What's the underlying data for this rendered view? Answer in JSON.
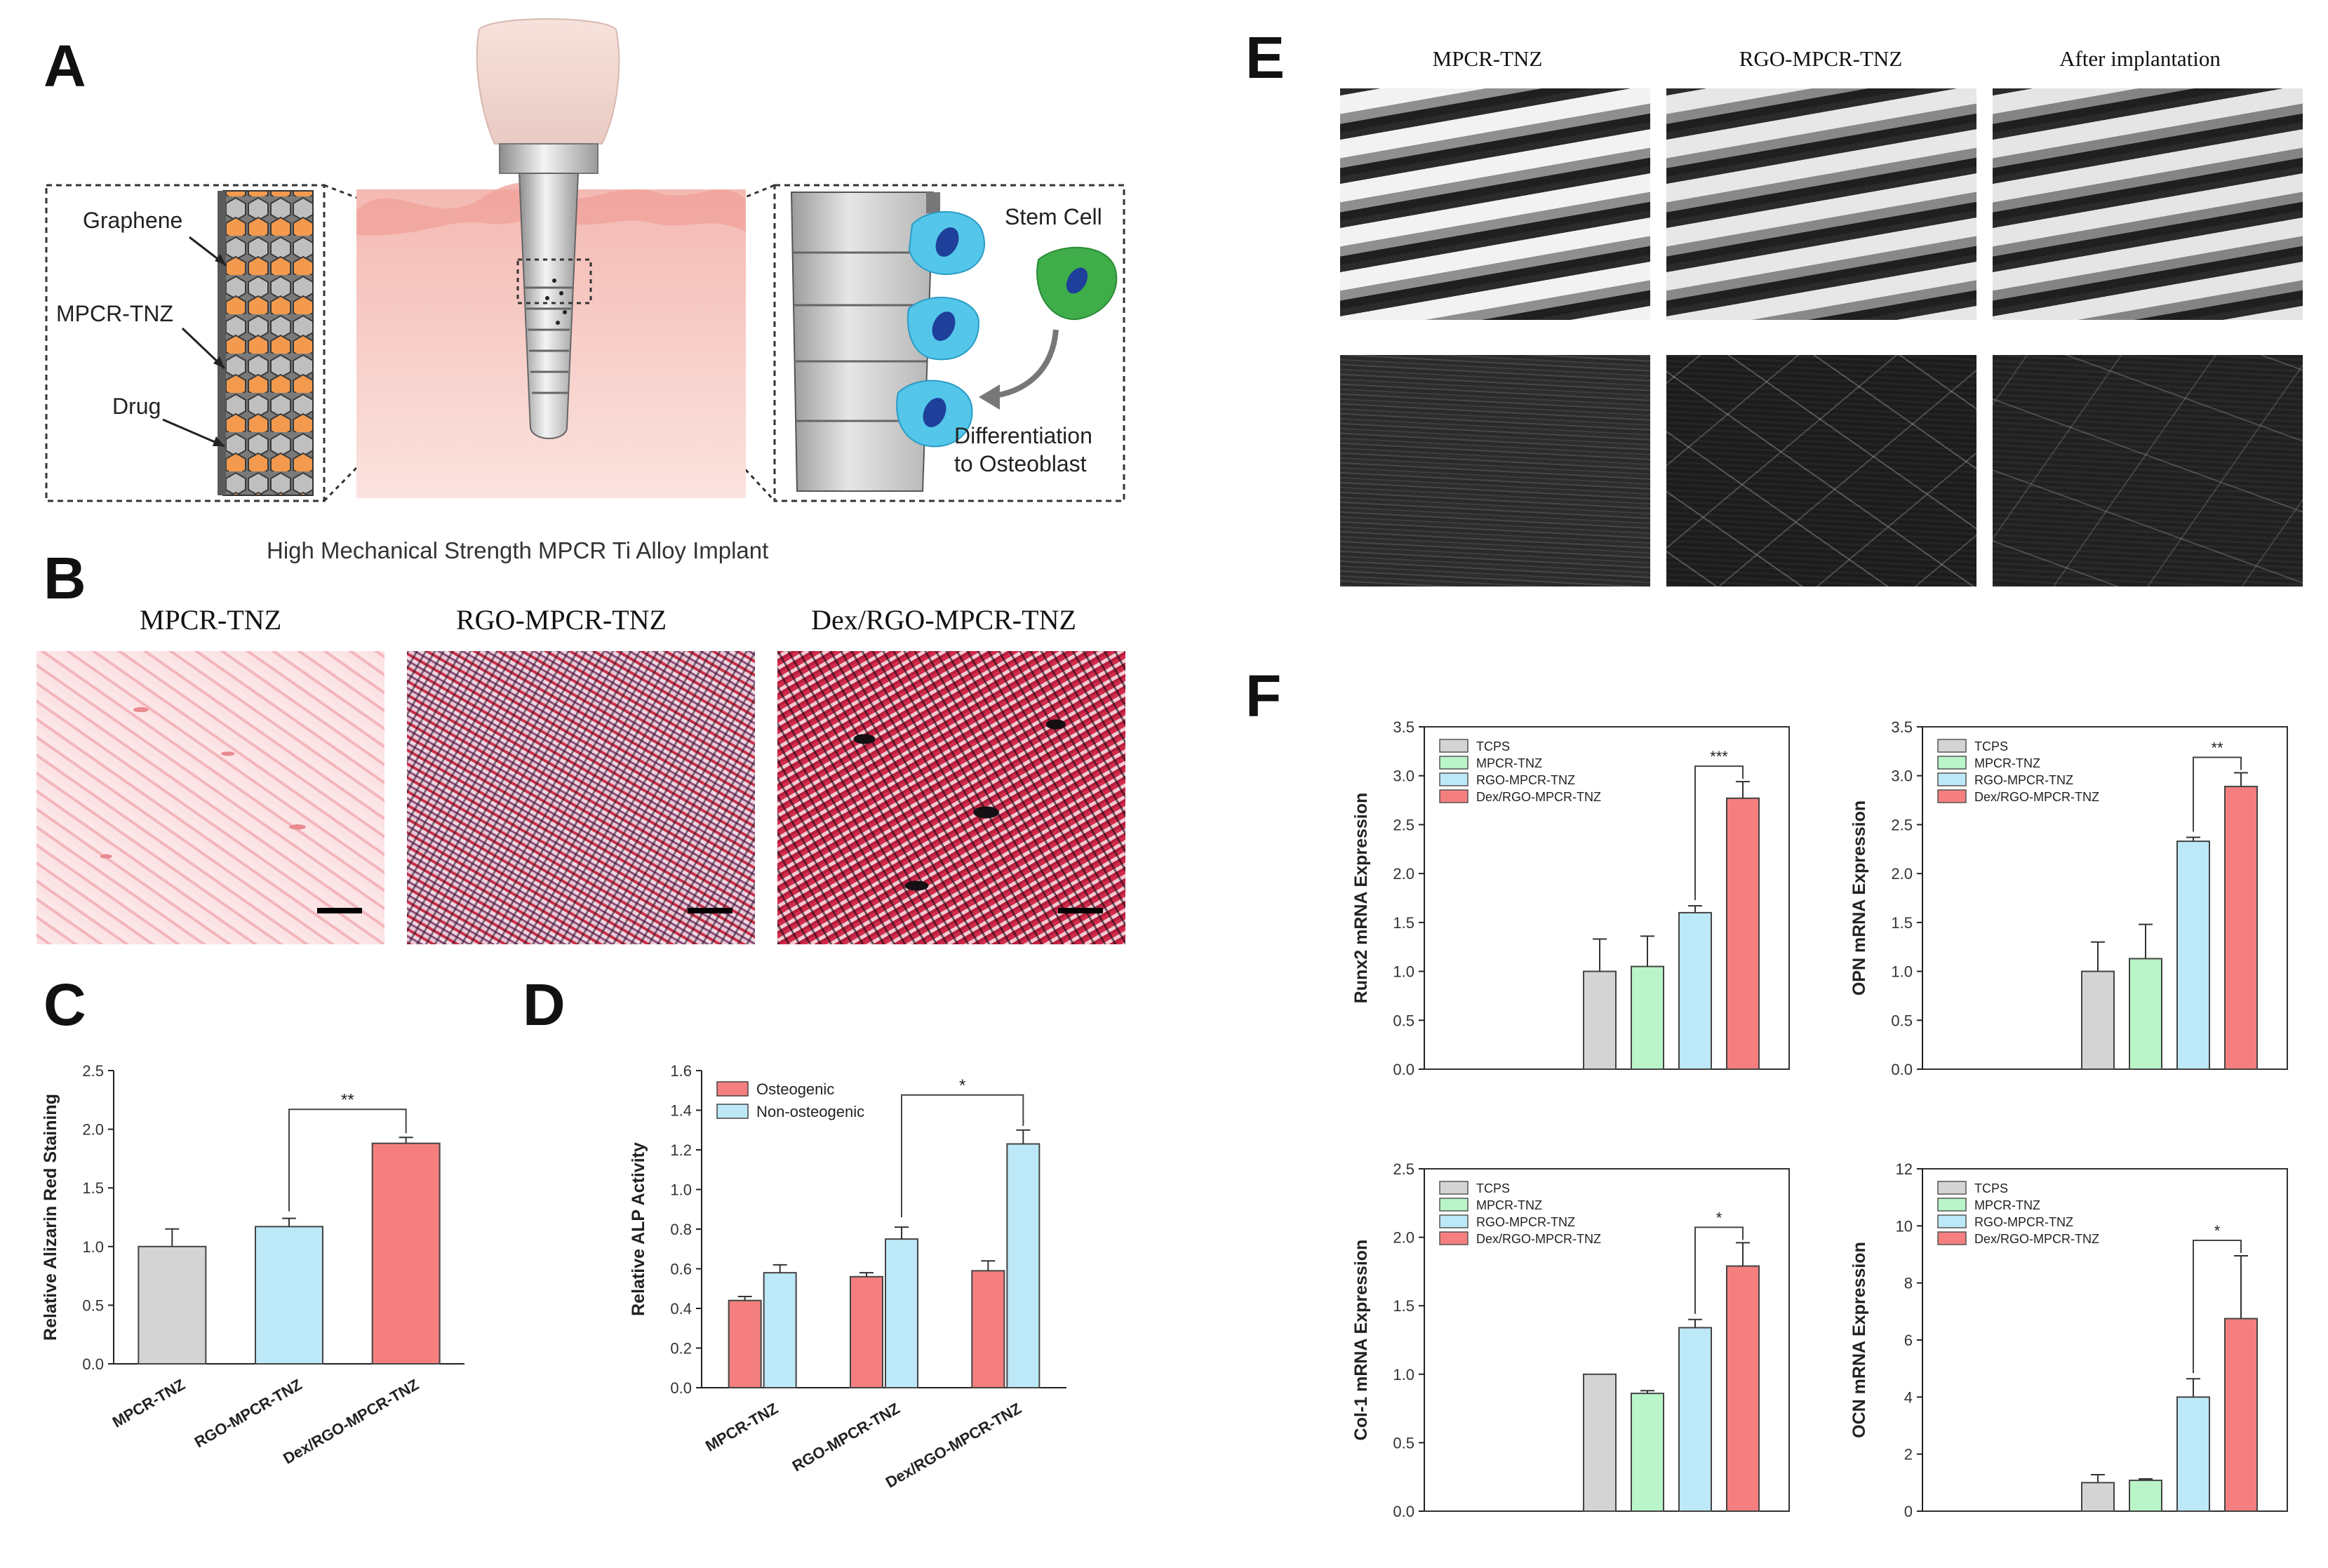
{
  "figure": {
    "panel_letters": [
      "A",
      "B",
      "C",
      "D",
      "E",
      "F"
    ]
  },
  "panel_a": {
    "labels": {
      "graphene": "Graphene",
      "mpcr_tnz": "MPCR-TNZ",
      "drug": "Drug",
      "stem_cell": "Stem Cell",
      "differentiation_line1": "Differentiation",
      "differentiation_line2": "to Osteoblast"
    },
    "caption": "High Mechanical Strength MPCR Ti Alloy Implant",
    "colors": {
      "gum": "#f2b4ad",
      "bone": "#f9d9d4",
      "drug_orange": "#f39a4e",
      "cell_blue": "#4fc3e8",
      "cell_green": "#3fae4a"
    }
  },
  "panel_b": {
    "titles": [
      "MPCR-TNZ",
      "RGO-MPCR-TNZ",
      "Dex/RGO-MPCR-TNZ"
    ]
  },
  "panel_e": {
    "titles": [
      "MPCR-TNZ",
      "RGO-MPCR-TNZ",
      "After implantation"
    ]
  },
  "chart_data": [
    {
      "id": "C",
      "type": "bar",
      "categories": [
        "MPCR-TNZ",
        "RGO-MPCR-TNZ",
        "Dex/RGO-MPCR-TNZ"
      ],
      "values": [
        1.0,
        1.17,
        1.88
      ],
      "errors": [
        0.15,
        0.07,
        0.05
      ],
      "colors": [
        "#d4d4d4",
        "#bde8f7",
        "#f57f7f"
      ],
      "ylabel": "Relative Alizarin Red Staining",
      "ylim": [
        0,
        2.5
      ],
      "yticks": [
        "0.0",
        "0.5",
        "1.0",
        "1.5",
        "2.0",
        "2.5"
      ],
      "significance": [
        {
          "from": 1,
          "to": 2,
          "label": "**"
        }
      ]
    },
    {
      "id": "D",
      "type": "bar",
      "categories": [
        "MPCR-TNZ",
        "RGO-MPCR-TNZ",
        "Dex/RGO-MPCR-TNZ"
      ],
      "series": [
        {
          "name": "Osteogenic",
          "color": "#f57f7f",
          "values": [
            0.44,
            0.56,
            0.59
          ],
          "errors": [
            0.02,
            0.02,
            0.05
          ]
        },
        {
          "name": "Non-osteogenic",
          "color": "#bde8f7",
          "values": [
            0.58,
            0.75,
            1.23
          ],
          "errors": [
            0.04,
            0.06,
            0.07
          ]
        }
      ],
      "ylabel": "Relative ALP Activity",
      "ylim": [
        0,
        1.6
      ],
      "yticks": [
        "0.0",
        "0.2",
        "0.4",
        "0.6",
        "0.8",
        "1.0",
        "1.2",
        "1.4",
        "1.6"
      ],
      "legend_position": "top-left",
      "significance": [
        {
          "from": 1,
          "to": 2,
          "label": "*"
        }
      ]
    },
    {
      "id": "F1",
      "type": "bar",
      "series": [
        {
          "name": "TCPS",
          "color": "#d4d4d4",
          "value": 1.0,
          "error": 0.33
        },
        {
          "name": "MPCR-TNZ",
          "color": "#b9f5c8",
          "value": 1.05,
          "error": 0.31
        },
        {
          "name": "RGO-MPCR-TNZ",
          "color": "#bde8f7",
          "value": 1.6,
          "error": 0.07
        },
        {
          "name": "Dex/RGO-MPCR-TNZ",
          "color": "#f57f7f",
          "value": 2.77,
          "error": 0.17
        }
      ],
      "ylabel": "Runx2 mRNA Expression",
      "ylim": [
        0,
        3.5
      ],
      "yticks": [
        "0.0",
        "0.5",
        "1.0",
        "1.5",
        "2.0",
        "2.5",
        "3.0",
        "3.5"
      ],
      "legend_position": "top-left",
      "significance": [
        {
          "from": 2,
          "to": 3,
          "label": "***"
        }
      ]
    },
    {
      "id": "F2",
      "type": "bar",
      "series": [
        {
          "name": "TCPS",
          "color": "#d4d4d4",
          "value": 1.0,
          "error": 0.3
        },
        {
          "name": "MPCR-TNZ",
          "color": "#b9f5c8",
          "value": 1.13,
          "error": 0.35
        },
        {
          "name": "RGO-MPCR-TNZ",
          "color": "#bde8f7",
          "value": 2.33,
          "error": 0.04
        },
        {
          "name": "Dex/RGO-MPCR-TNZ",
          "color": "#f57f7f",
          "value": 2.89,
          "error": 0.14
        }
      ],
      "ylabel": "OPN mRNA Expression",
      "ylim": [
        0,
        3.5
      ],
      "yticks": [
        "0.0",
        "0.5",
        "1.0",
        "1.5",
        "2.0",
        "2.5",
        "3.0",
        "3.5"
      ],
      "legend_position": "top-left",
      "significance": [
        {
          "from": 2,
          "to": 3,
          "label": "**"
        }
      ]
    },
    {
      "id": "F3",
      "type": "bar",
      "series": [
        {
          "name": "TCPS",
          "color": "#d4d4d4",
          "value": 1.0,
          "error": 0.0
        },
        {
          "name": "MPCR-TNZ",
          "color": "#b9f5c8",
          "value": 0.86,
          "error": 0.02
        },
        {
          "name": "RGO-MPCR-TNZ",
          "color": "#bde8f7",
          "value": 1.34,
          "error": 0.06
        },
        {
          "name": "Dex/RGO-MPCR-TNZ",
          "color": "#f57f7f",
          "value": 1.79,
          "error": 0.17
        }
      ],
      "ylabel": "Col-1 mRNA Expression",
      "ylim": [
        0,
        2.5
      ],
      "yticks": [
        "0.0",
        "0.5",
        "1.0",
        "1.5",
        "2.0",
        "2.5"
      ],
      "legend_position": "top-left",
      "significance": [
        {
          "from": 2,
          "to": 3,
          "label": "*"
        }
      ]
    },
    {
      "id": "F4",
      "type": "bar",
      "series": [
        {
          "name": "TCPS",
          "color": "#d4d4d4",
          "value": 1.0,
          "error": 0.28
        },
        {
          "name": "MPCR-TNZ",
          "color": "#b9f5c8",
          "value": 1.08,
          "error": 0.05
        },
        {
          "name": "RGO-MPCR-TNZ",
          "color": "#bde8f7",
          "value": 4.0,
          "error": 0.64
        },
        {
          "name": "Dex/RGO-MPCR-TNZ",
          "color": "#f57f7f",
          "value": 6.75,
          "error": 2.2
        }
      ],
      "ylabel": "OCN mRNA Expression",
      "ylim": [
        0,
        12
      ],
      "yticks": [
        "0",
        "2",
        "4",
        "6",
        "8",
        "10",
        "12"
      ],
      "legend_position": "top-left",
      "significance": [
        {
          "from": 2,
          "to": 3,
          "label": "*"
        }
      ]
    }
  ]
}
